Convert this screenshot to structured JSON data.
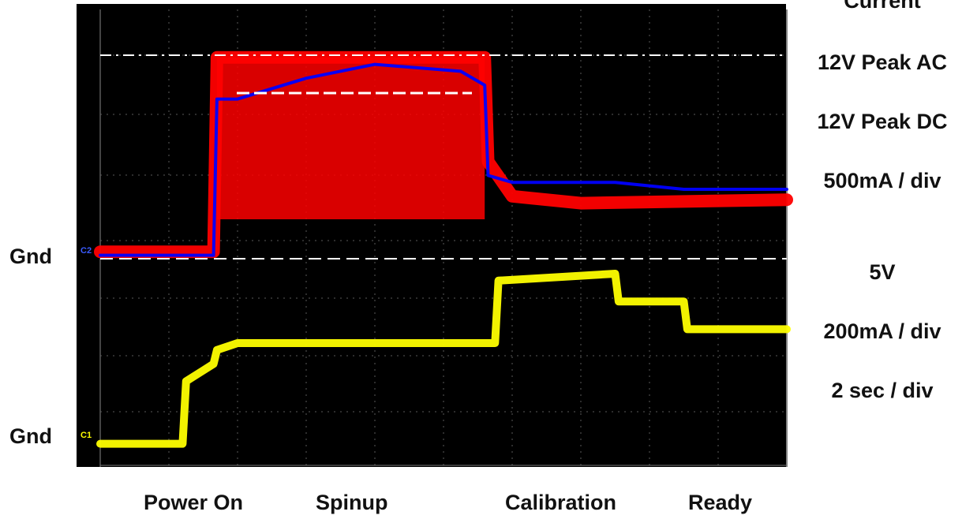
{
  "chart_data": {
    "type": "line",
    "title": "",
    "x": {
      "unit": "sec",
      "scale_label": "2 sec / div",
      "divisions": 10,
      "range": [
        0,
        20
      ]
    },
    "grid": true,
    "background": "#000000",
    "left_labels": [
      "Gnd",
      "Gnd"
    ],
    "right_labels": [
      "Current",
      "12V Peak AC",
      "12V Peak DC",
      "500mA / div",
      "5V",
      "200mA / div",
      "2 sec / div"
    ],
    "phases": [
      "Power On",
      "Spinup",
      "Calibration",
      "Ready"
    ],
    "channel_markers": [
      "C2",
      "C1"
    ],
    "reference_lines": [
      {
        "name": "12V Peak AC",
        "style": "dash-dot",
        "color": "#ffffff"
      },
      {
        "name": "12V Peak DC",
        "style": "dashed",
        "color": "#ffffff"
      },
      {
        "name": "Gnd",
        "style": "dashed",
        "color": "#ffffff"
      }
    ],
    "series": [
      {
        "color": "#ff0000",
        "x": [
          0,
          3.3,
          3.4,
          4.0,
          8.0,
          11.2,
          11.3,
          12.0,
          14.0,
          20.0
        ],
        "y": [
          0.1,
          0.1,
          2.9,
          2.9,
          2.9,
          2.9,
          1.4,
          0.9,
          0.8,
          0.85
        ]
      },
      {
        "color": "#0000ff",
        "x": [
          0,
          3.3,
          3.4,
          4.0,
          6.0,
          8.0,
          10.5,
          11.2,
          11.3,
          12.0,
          15.0,
          17.0,
          20.0
        ],
        "y": [
          0.05,
          0.05,
          2.3,
          2.3,
          2.6,
          2.8,
          2.7,
          2.5,
          1.2,
          1.1,
          1.1,
          1.0,
          1.0
        ]
      },
      {
        "color": "#ffff00",
        "x": [
          0,
          2.4,
          2.5,
          3.3,
          3.4,
          4.0,
          8.0,
          11.5,
          11.6,
          15.0,
          15.1,
          17.0,
          17.1,
          20.0
        ],
        "y": [
          0.05,
          0.05,
          0.95,
          1.2,
          1.4,
          1.5,
          1.5,
          1.5,
          2.4,
          2.5,
          2.1,
          2.1,
          1.7,
          1.7
        ]
      }
    ]
  }
}
